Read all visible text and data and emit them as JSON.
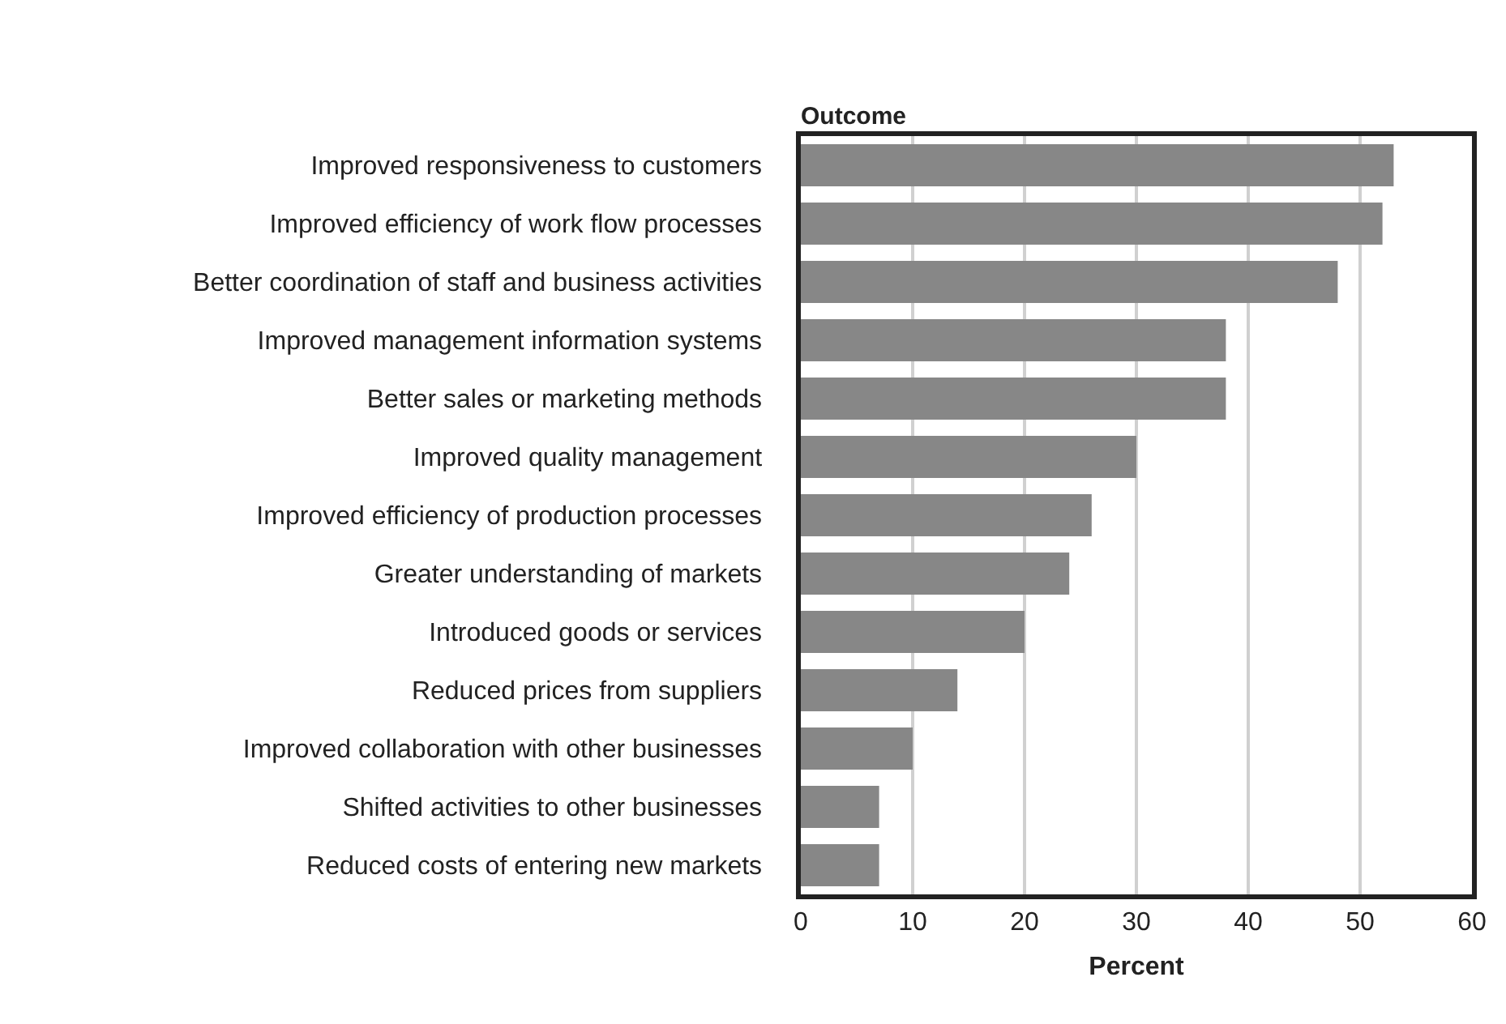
{
  "chart_data": {
    "type": "bar",
    "orientation": "horizontal",
    "title": "Outcome",
    "xlabel": "Percent",
    "categories": [
      "Improved responsiveness to customers",
      "Improved efficiency of work flow processes",
      "Better coordination of staff and business activities",
      "Improved management information systems",
      "Better sales or marketing methods",
      "Improved quality management",
      "Improved efficiency of production processes",
      "Greater understanding of markets",
      "Introduced goods or services",
      "Reduced prices from suppliers",
      "Improved collaboration with other businesses",
      "Shifted activities to other businesses",
      "Reduced costs of entering new markets"
    ],
    "values": [
      53,
      52,
      48,
      38,
      38,
      30,
      26,
      24,
      20,
      14,
      10,
      7,
      7
    ],
    "color": "#878787",
    "xlim": [
      0,
      60
    ],
    "xticks": [
      0,
      10,
      20,
      30,
      40,
      50,
      60
    ],
    "grid": "x"
  }
}
